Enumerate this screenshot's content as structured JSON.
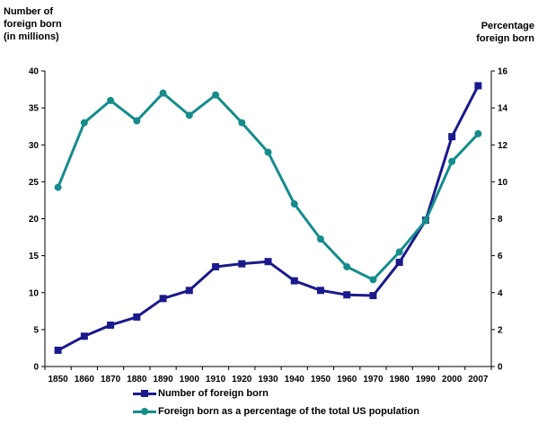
{
  "chart_data": {
    "type": "line",
    "ylabel": "Number of foreign born (in millions)",
    "y2label": "Percentage foreign born",
    "categories": [
      "1850",
      "1860",
      "1870",
      "1880",
      "1890",
      "1900",
      "1910",
      "1920",
      "1930",
      "1940",
      "1950",
      "1960",
      "1970",
      "1980",
      "1990",
      "2000",
      "2007"
    ],
    "ylim": [
      0,
      40
    ],
    "y2lim": [
      0,
      16
    ],
    "yticks": [
      0,
      5,
      10,
      15,
      20,
      25,
      30,
      35,
      40
    ],
    "y2ticks": [
      0,
      2,
      4,
      6,
      8,
      10,
      12,
      14,
      16
    ],
    "series": [
      {
        "name": "Number of foreign born",
        "axis": "left",
        "marker": "square",
        "color": "#1a1a8c",
        "values": [
          2.2,
          4.1,
          5.6,
          6.7,
          9.2,
          10.3,
          13.5,
          13.9,
          14.2,
          11.6,
          10.3,
          9.7,
          9.6,
          14.1,
          19.8,
          31.1,
          38.0
        ]
      },
      {
        "name": "Foreign born as a percentage of the total US population",
        "axis": "right",
        "marker": "circle",
        "color": "#168c8c",
        "values": [
          9.7,
          13.2,
          14.4,
          13.3,
          14.8,
          13.6,
          14.7,
          13.2,
          11.6,
          8.8,
          6.9,
          5.4,
          4.7,
          6.2,
          7.9,
          11.1,
          12.6
        ]
      }
    ],
    "grid": false,
    "legend_position": "bottom"
  }
}
